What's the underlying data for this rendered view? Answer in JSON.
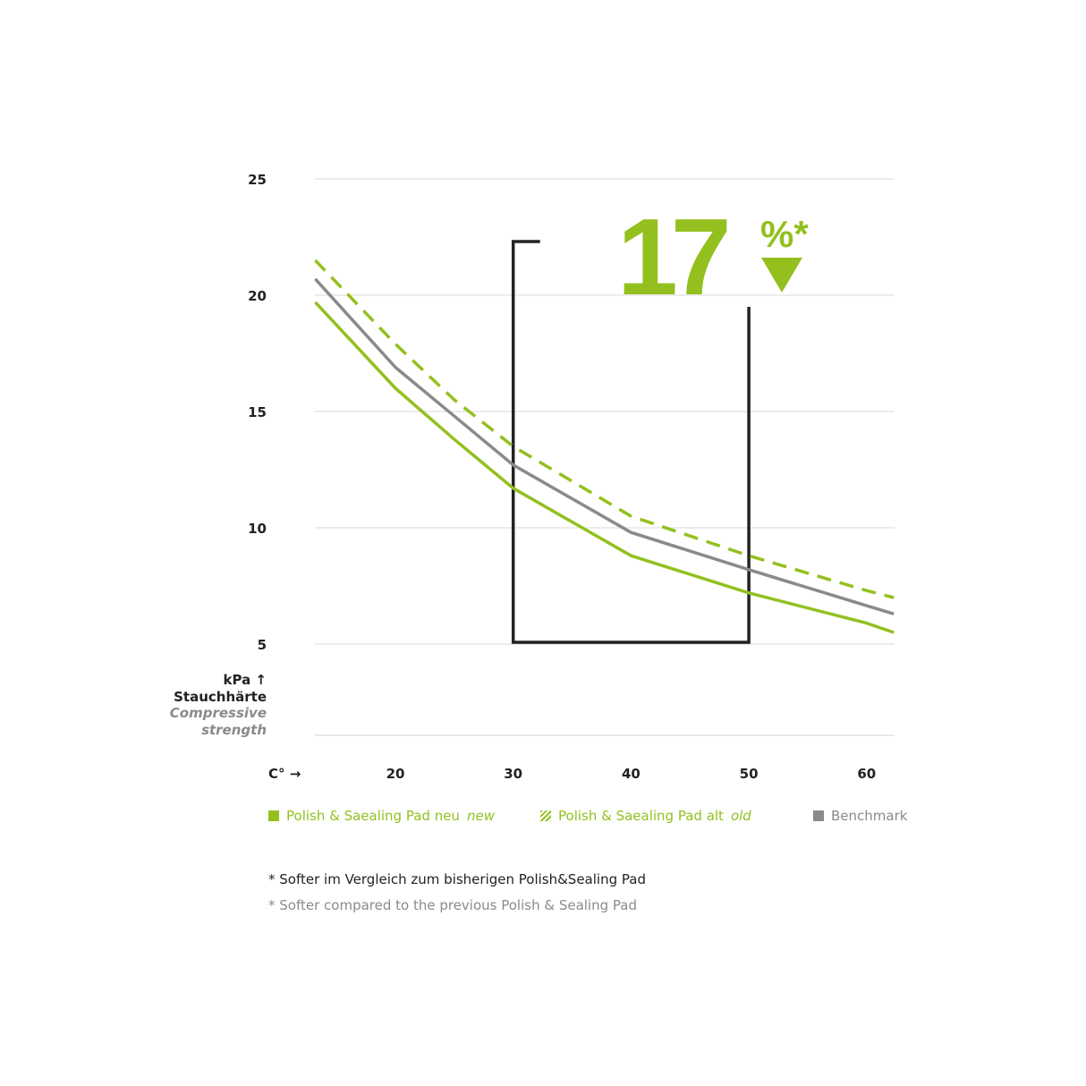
{
  "chart_data": {
    "type": "line",
    "xlabel": "C°",
    "ylabel": {
      "unit": "kPa",
      "de": "Stauchhärte",
      "en1": "Compressive",
      "en2": "strength"
    },
    "xticks": [
      20,
      30,
      40,
      50,
      60
    ],
    "yticks": [
      5,
      10,
      15,
      20,
      25
    ],
    "xlim": [
      13.2,
      62.3
    ],
    "ylim": [
      5,
      25
    ],
    "grid": true,
    "legend_placement": "bottom",
    "x": [
      13.2,
      20,
      25,
      30,
      40,
      50,
      60,
      62.3
    ],
    "series": [
      {
        "name": "Polish & Saealing Pad neu",
        "name_en": "new",
        "style": "solid",
        "color": "#93c01f",
        "values": [
          19.7,
          16.0,
          13.8,
          11.7,
          8.8,
          7.2,
          5.9,
          5.5
        ]
      },
      {
        "name": "Polish & Saealing Pad alt",
        "name_en": "old",
        "style": "dashed",
        "color": "#93c01f",
        "values": [
          21.5,
          17.9,
          15.5,
          13.5,
          10.5,
          8.8,
          7.3,
          7.0
        ]
      },
      {
        "name": "Benchmark",
        "style": "solid",
        "color": "#8a8a8a",
        "values": [
          20.7,
          16.9,
          14.8,
          12.7,
          9.8,
          8.2,
          6.65,
          6.3
        ]
      }
    ],
    "annotation": {
      "value": "17",
      "suffix": "%*",
      "bracket_x": [
        30,
        50
      ],
      "direction": "down"
    },
    "footnotes": [
      "* Softer im Vergleich zum bisherigen Polish&Sealing Pad",
      "* Softer compared to the previous Polish & Sealing Pad"
    ]
  }
}
